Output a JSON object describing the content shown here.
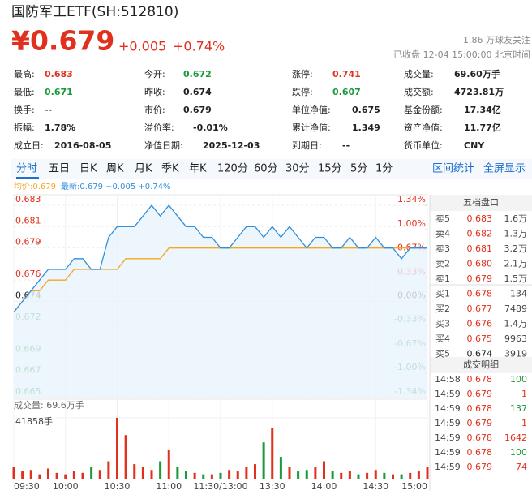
{
  "header": {
    "title": "国防军工ETF(SH:512810)",
    "price": "¥0.679",
    "change": "+0.005",
    "change_pct": "+0.74%",
    "followers": "1.86 万球友关注",
    "status": "已收盘 12-04 15:00:00 北京时间"
  },
  "stats": [
    [
      {
        "label": "最高:",
        "value": "0.683",
        "color": "#e0301e"
      },
      {
        "label": "今开:",
        "value": "0.672",
        "color": "#1a9a3a"
      },
      {
        "label": "涨停:",
        "value": "0.741",
        "color": "#e0301e"
      },
      {
        "label": "成交量:",
        "value": "69.60万手",
        "color": "#222222"
      }
    ],
    [
      {
        "label": "最低:",
        "value": "0.671",
        "color": "#1a9a3a"
      },
      {
        "label": "昨收:",
        "value": "0.674",
        "color": "#222222"
      },
      {
        "label": "跌停:",
        "value": "0.607",
        "color": "#1a9a3a"
      },
      {
        "label": "成交额:",
        "value": "4723.81万",
        "color": "#222222"
      }
    ],
    [
      {
        "label": "换手:",
        "value": "--",
        "color": "#222222"
      },
      {
        "label": "市价:",
        "value": "0.679",
        "color": "#222222"
      },
      {
        "label": "单位净值:",
        "value": "0.675",
        "color": "#222222"
      },
      {
        "label": "基金份额:",
        "value": "17.34亿",
        "color": "#222222"
      }
    ],
    [
      {
        "label": "振幅:",
        "value": "1.78%",
        "color": "#222222"
      },
      {
        "label": "溢价率:",
        "value": "-0.01%",
        "color": "#222222"
      },
      {
        "label": "累计净值:",
        "value": "1.349",
        "color": "#222222"
      },
      {
        "label": "资产净值:",
        "value": "11.77亿",
        "color": "#222222"
      }
    ],
    [
      {
        "label": "成立日:",
        "value": "2016-08-05",
        "color": "#222222"
      },
      {
        "label": "净值日期:",
        "value": "2025-12-03",
        "color": "#222222"
      },
      {
        "label": "到期日:",
        "value": "--",
        "color": "#222222"
      },
      {
        "label": "货币单位:",
        "value": "CNY",
        "color": "#222222"
      }
    ]
  ],
  "tabs": [
    "分时",
    "五日",
    "日K",
    "周K",
    "月K",
    "季K",
    "年K",
    "120分",
    "60分",
    "30分",
    "15分",
    "5分",
    "1分"
  ],
  "active_tab": 0,
  "right_tabs": [
    "区间统计",
    "全屏显示"
  ],
  "chart_data": [
    {
      "type": "line",
      "ylim": [
        0.665,
        0.683
      ],
      "yticks": [
        0.683,
        0.681,
        0.679,
        0.676,
        0.674,
        0.672,
        0.669,
        0.667,
        0.665
      ],
      "y2lim": [
        -1.34,
        1.34
      ],
      "y2ticks": [
        {
          "value": 1.34,
          "label": "1.34%"
        },
        {
          "value": 1.0,
          "label": "1.00%"
        },
        {
          "value": 0.67,
          "label": "0.67%"
        },
        {
          "value": 0.33,
          "label": "0.33%"
        },
        {
          "value": 0.0,
          "label": "0.00%"
        },
        {
          "value": -0.33,
          "label": "-0.33%"
        },
        {
          "value": -0.67,
          "label": "-0.67%"
        },
        {
          "value": -1.0,
          "label": "-1.00%"
        },
        {
          "value": -1.34,
          "label": "-1.34%"
        }
      ],
      "grid": true,
      "series": [
        {
          "name": "均价:0.679",
          "color": "#f5a623",
          "values": [
            0.673,
            0.674,
            0.675,
            0.675,
            0.676,
            0.676,
            0.676,
            0.677,
            0.677,
            0.677,
            0.677,
            0.677,
            0.677,
            0.678,
            0.678,
            0.678,
            0.678,
            0.678,
            0.679,
            0.679,
            0.679,
            0.679,
            0.679,
            0.679,
            0.679,
            0.679,
            0.679,
            0.679,
            0.679,
            0.679,
            0.679,
            0.679,
            0.679,
            0.679,
            0.679,
            0.679,
            0.679,
            0.679,
            0.679,
            0.679,
            0.679,
            0.679,
            0.679,
            0.679,
            0.679,
            0.679,
            0.679,
            0.679,
            0.679
          ]
        },
        {
          "name": "最新:0.679 +0.005 +0.74%",
          "color": "#2f8fdc",
          "values": [
            0.673,
            0.674,
            0.675,
            0.676,
            0.677,
            0.677,
            0.677,
            0.678,
            0.678,
            0.677,
            0.677,
            0.68,
            0.681,
            0.681,
            0.681,
            0.682,
            0.683,
            0.682,
            0.683,
            0.682,
            0.681,
            0.681,
            0.68,
            0.68,
            0.679,
            0.679,
            0.68,
            0.681,
            0.681,
            0.68,
            0.681,
            0.68,
            0.681,
            0.68,
            0.679,
            0.68,
            0.68,
            0.679,
            0.679,
            0.68,
            0.679,
            0.679,
            0.68,
            0.679,
            0.679,
            0.678,
            0.679,
            0.679,
            0.679
          ]
        }
      ]
    },
    {
      "type": "bar",
      "title": "成交量: 69.6万手",
      "ylim": [
        0,
        41858
      ],
      "yticks": [
        {
          "value": 41858,
          "label": "41858手"
        }
      ],
      "categories": [
        "09:30",
        null,
        null,
        null,
        null,
        null,
        "10:00",
        null,
        null,
        null,
        null,
        null,
        "10:30",
        null,
        null,
        null,
        null,
        null,
        "11:00",
        null,
        null,
        null,
        null,
        null,
        "11:30/13:00",
        null,
        null,
        null,
        null,
        null,
        "13:30",
        null,
        null,
        null,
        null,
        null,
        "14:00",
        null,
        null,
        null,
        null,
        null,
        "14:30",
        null,
        null,
        null,
        null,
        null,
        "15:00"
      ],
      "up_color": "#e0301e",
      "down_color": "#1a9a3a",
      "values": [
        8000,
        5000,
        6000,
        3000,
        7000,
        4000,
        3000,
        5000,
        4000,
        8000,
        6000,
        12000,
        41858,
        30000,
        10000,
        8000,
        6000,
        12000,
        20000,
        8000,
        5000,
        4000,
        3000,
        3000,
        4000,
        6000,
        5000,
        8000,
        10000,
        25000,
        35000,
        15000,
        8000,
        5000,
        6000,
        8000,
        12000,
        5000,
        4000,
        5000,
        3000,
        4000,
        6000,
        4000,
        3000,
        3000,
        4000,
        5000,
        8000
      ]
    }
  ],
  "order_book": {
    "title": "五档盘口",
    "rows": [
      [
        "卖5",
        "0.683",
        "1.6万"
      ],
      [
        "卖4",
        "0.682",
        "1.3万"
      ],
      [
        "卖3",
        "0.681",
        "3.2万"
      ],
      [
        "卖2",
        "0.680",
        "2.1万"
      ],
      [
        "卖1",
        "0.679",
        "1.5万"
      ],
      [
        "买1",
        "0.678",
        "134"
      ],
      [
        "买2",
        "0.677",
        "7489"
      ],
      [
        "买3",
        "0.676",
        "1.4万"
      ],
      [
        "买4",
        "0.675",
        "9963"
      ],
      [
        "买5",
        "0.674",
        "3919"
      ]
    ]
  },
  "trades": {
    "title": "成交明细",
    "rows": [
      [
        "14:58",
        "0.678",
        "100"
      ],
      [
        "14:59",
        "0.679",
        "1"
      ],
      [
        "14:59",
        "0.678",
        "137"
      ],
      [
        "14:59",
        "0.679",
        "1"
      ],
      [
        "14:59",
        "0.678",
        "1642"
      ],
      [
        "14:59",
        "0.678",
        "100"
      ],
      [
        "14:59",
        "0.679",
        "74"
      ]
    ],
    "volume_colors": [
      "#1a9a3a",
      "#e0301e",
      "#1a9a3a",
      "#e0301e",
      "#e0301e",
      "#1a9a3a",
      "#e0301e"
    ]
  }
}
